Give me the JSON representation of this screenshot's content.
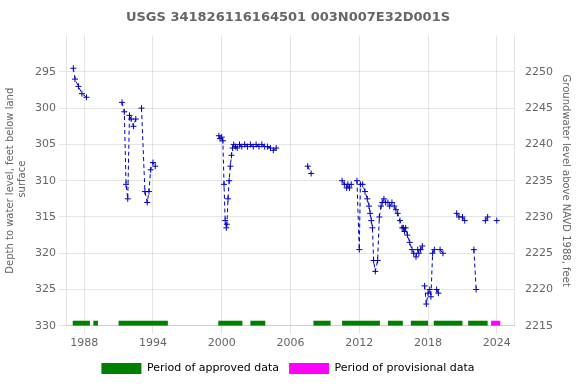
{
  "chart_data": {
    "type": "line",
    "title": "USGS 341826116164501 003N007E32D001S",
    "ylabel": "Depth to water level, feet below land\n surface",
    "y2label": "Groundwater level above NAVD 1988, feet",
    "xlim": [
      1986.5,
      2025.5
    ],
    "xticks": [
      1988,
      1994,
      2000,
      2006,
      2012,
      2018,
      2024
    ],
    "ylim": [
      330,
      290
    ],
    "yticks": [
      295,
      300,
      305,
      310,
      315,
      320,
      325,
      330
    ],
    "y2lim": [
      2215,
      2255
    ],
    "y2ticks": [
      2250,
      2245,
      2240,
      2235,
      2230,
      2225,
      2220,
      2215
    ],
    "grid": true,
    "color": "#0000bb",
    "marker": "plus",
    "line_style": "dashed",
    "legend": "bottom",
    "series": [
      {
        "x": [
          1987.05,
          1987.2,
          1987.5,
          1987.8,
          1988.2
        ],
        "values": [
          294.5,
          296.0,
          297.0,
          298.0,
          298.5
        ]
      },
      {
        "x": [
          1991.3,
          1991.5,
          1991.65,
          1991.8,
          1991.95,
          1992.1,
          1992.3,
          1992.5
        ],
        "values": [
          299.2,
          300.5,
          310.5,
          312.5,
          301.0,
          301.5,
          302.5,
          301.5
        ]
      },
      {
        "x": [
          1993.0,
          1993.3,
          1993.5,
          1993.65,
          1993.8,
          1994.0,
          1994.2
        ],
        "values": [
          300.0,
          311.5,
          313.0,
          311.5,
          308.5,
          307.5,
          308.0
        ]
      },
      {
        "x": [
          1999.75,
          1999.85,
          2000.0,
          2000.1,
          2000.2,
          2000.3,
          2000.4,
          2000.45,
          2000.55,
          2000.65,
          2000.75,
          2000.85,
          2000.95,
          2001.05,
          2001.2,
          2001.35,
          2001.55,
          2001.75,
          2002.0,
          2002.25,
          2002.5,
          2002.75,
          2003.0,
          2003.25,
          2003.5,
          2003.75,
          2004.0,
          2004.25,
          2004.5,
          2004.75
        ],
        "values": [
          303.8,
          304.2,
          304.0,
          304.5,
          310.5,
          315.5,
          316.5,
          316.0,
          312.5,
          310.0,
          308.0,
          306.5,
          305.5,
          305.0,
          305.3,
          305.5,
          305.0,
          305.3,
          305.0,
          305.3,
          305.0,
          305.3,
          305.0,
          305.3,
          305.0,
          305.3,
          305.3,
          305.5,
          305.8,
          305.5
        ]
      },
      {
        "x": [
          2007.5,
          2007.8
        ],
        "values": [
          308.0,
          309.0
        ]
      },
      {
        "x": [
          2010.5,
          2010.7,
          2010.9,
          2011.0,
          2011.15,
          2011.3
        ],
        "values": [
          310.0,
          310.5,
          311.0,
          310.5,
          311.0,
          310.5
        ]
      },
      {
        "x": [
          2011.8,
          2012.0,
          2012.1,
          2012.3,
          2012.5,
          2012.7,
          2012.85,
          2012.95,
          2013.05,
          2013.15,
          2013.25,
          2013.4,
          2013.6,
          2013.75,
          2013.9,
          2014.0,
          2014.15,
          2014.3,
          2014.5,
          2014.65,
          2014.85
        ],
        "values": [
          310.0,
          319.5,
          310.5,
          310.5,
          311.5,
          312.5,
          313.5,
          314.5,
          315.5,
          316.5,
          321.0,
          322.5,
          321.0,
          315.0,
          313.5,
          313.0,
          312.5,
          313.0,
          313.0,
          313.5,
          313.0
        ]
      },
      {
        "x": [
          2015.05,
          2015.2,
          2015.35,
          2015.55,
          2015.75,
          2015.85,
          2015.95,
          2016.05,
          2016.2,
          2016.4,
          2016.6,
          2016.75,
          2016.95,
          2017.1,
          2017.2,
          2017.35,
          2017.5
        ],
        "values": [
          313.5,
          314.0,
          314.5,
          315.5,
          316.5,
          316.5,
          317.0,
          316.5,
          317.5,
          318.5,
          319.5,
          320.0,
          320.5,
          319.5,
          320.0,
          319.5,
          319.0
        ]
      },
      {
        "x": [
          2017.7,
          2017.85,
          2018.0,
          2018.15,
          2018.25,
          2018.4,
          2018.55
        ],
        "values": [
          324.5,
          327.0,
          325.5,
          325.0,
          326.0,
          320.0,
          319.5
        ]
      },
      {
        "x": [
          2018.75,
          2018.9
        ],
        "values": [
          325.0,
          325.5
        ]
      },
      {
        "x": [
          2019.05,
          2019.3
        ],
        "values": [
          319.5,
          320.0
        ]
      },
      {
        "x": [
          2020.5,
          2020.7
        ],
        "values": [
          314.5,
          315.0
        ]
      },
      {
        "x": [
          2021.0,
          2021.2
        ],
        "values": [
          315.0,
          315.5
        ]
      },
      {
        "x": [
          2022.0,
          2022.2
        ],
        "values": [
          319.5,
          325.0
        ]
      },
      {
        "x": [
          2023.0,
          2023.2
        ],
        "values": [
          315.5,
          315.0
        ]
      },
      {
        "x": [
          2024.0
        ],
        "values": [
          315.5
        ]
      }
    ],
    "bands": [
      {
        "name": "Period of approved data",
        "color": "#008000",
        "y_range": [
          329.3,
          330.0
        ],
        "ranges": [
          [
            1987.0,
            1988.5
          ],
          [
            1988.8,
            1989.2
          ],
          [
            1991.0,
            1995.3
          ],
          [
            1999.7,
            2001.8
          ],
          [
            2002.5,
            2003.8
          ],
          [
            2008.0,
            2009.5
          ],
          [
            2010.5,
            2013.8
          ],
          [
            2014.5,
            2015.8
          ],
          [
            2016.5,
            2018.0
          ],
          [
            2018.5,
            2021.0
          ],
          [
            2021.5,
            2023.2
          ]
        ]
      },
      {
        "name": "Period of provisional data",
        "color": "#ff00ff",
        "y_range": [
          329.3,
          330.0
        ],
        "ranges": [
          [
            2023.5,
            2024.3
          ]
        ]
      }
    ]
  }
}
